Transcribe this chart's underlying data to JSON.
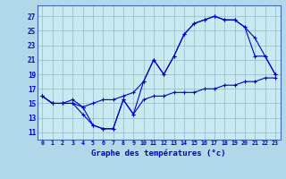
{
  "title": "Graphe des températures (°c)",
  "bg_color": "#b0d8e8",
  "plot_bg_color": "#c8eaf0",
  "line_color": "#0000cc",
  "grid_color": "#90b8cc",
  "xlim": [
    -0.5,
    23.5
  ],
  "ylim": [
    10.0,
    28.5
  ],
  "yticks": [
    11,
    13,
    15,
    17,
    19,
    21,
    23,
    25,
    27
  ],
  "xticks": [
    0,
    1,
    2,
    3,
    4,
    5,
    6,
    7,
    8,
    9,
    10,
    11,
    12,
    13,
    14,
    15,
    16,
    17,
    18,
    19,
    20,
    21,
    22,
    23
  ],
  "series": {
    "max": {
      "x": [
        0,
        1,
        2,
        3,
        4,
        5,
        6,
        7,
        8,
        9,
        10,
        11,
        12,
        13,
        14,
        15,
        16,
        17,
        18,
        19,
        20,
        21,
        22,
        23
      ],
      "y": [
        16.0,
        15.0,
        15.0,
        15.0,
        14.5,
        12.0,
        11.5,
        11.5,
        15.5,
        13.5,
        18.0,
        21.0,
        19.0,
        21.5,
        24.5,
        26.0,
        26.5,
        27.0,
        26.5,
        26.5,
        25.5,
        24.0,
        21.5,
        19.0
      ]
    },
    "min": {
      "x": [
        0,
        1,
        2,
        3,
        4,
        5,
        6,
        7,
        8,
        9,
        10,
        11,
        12,
        13,
        14,
        15,
        16,
        17,
        18,
        19,
        20,
        21,
        22,
        23
      ],
      "y": [
        16.0,
        15.0,
        15.0,
        15.0,
        13.5,
        12.0,
        11.5,
        11.5,
        15.5,
        13.5,
        15.5,
        16.0,
        16.0,
        16.5,
        16.5,
        16.5,
        17.0,
        17.0,
        17.5,
        17.5,
        18.0,
        18.0,
        18.5,
        18.5
      ]
    },
    "mean": {
      "x": [
        0,
        1,
        2,
        3,
        4,
        5,
        6,
        7,
        8,
        9,
        10,
        11,
        12,
        13,
        14,
        15,
        16,
        17,
        18,
        19,
        20,
        21,
        22,
        23
      ],
      "y": [
        16.0,
        15.0,
        15.0,
        15.5,
        14.5,
        15.0,
        15.5,
        15.5,
        16.0,
        16.5,
        18.0,
        21.0,
        19.0,
        21.5,
        24.5,
        26.0,
        26.5,
        27.0,
        26.5,
        26.5,
        25.5,
        21.5,
        21.5,
        19.0
      ]
    }
  }
}
